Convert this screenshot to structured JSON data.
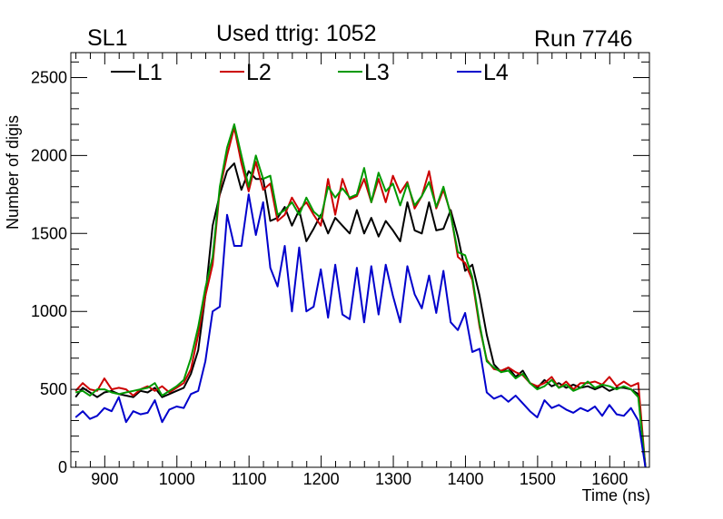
{
  "header": {
    "left": "SL1",
    "center": "Used ttrig: 1052",
    "right": "Run 7746"
  },
  "chart_data": {
    "type": "line",
    "title": "Used ttrig: 1052",
    "xlabel": "Time (ns)",
    "ylabel": "Number of digis",
    "xlim": [
      853,
      1655
    ],
    "ylim": [
      0,
      2660
    ],
    "xticks": [
      900,
      1000,
      1100,
      1200,
      1300,
      1400,
      1500,
      1600
    ],
    "yticks": [
      0,
      500,
      1000,
      1500,
      2000,
      2500
    ],
    "x": [
      859.5,
      869.5,
      879.5,
      889.5,
      899.5,
      909.5,
      919.5,
      929.5,
      939.5,
      949.5,
      959.5,
      969.5,
      979.5,
      989.5,
      999.5,
      1009.5,
      1019.5,
      1029.5,
      1039.5,
      1049.5,
      1059.5,
      1069.5,
      1079.5,
      1089.5,
      1099.5,
      1109.5,
      1119.5,
      1129.5,
      1139.5,
      1149.5,
      1159.5,
      1169.5,
      1179.5,
      1189.5,
      1199.5,
      1209.5,
      1219.5,
      1229.5,
      1239.5,
      1249.5,
      1259.5,
      1269.5,
      1279.5,
      1289.5,
      1299.5,
      1309.5,
      1319.5,
      1329.5,
      1339.5,
      1349.5,
      1359.5,
      1369.5,
      1379.5,
      1389.5,
      1399.5,
      1409.5,
      1419.5,
      1429.5,
      1439.5,
      1449.5,
      1459.5,
      1469.5,
      1479.5,
      1489.5,
      1499.5,
      1509.5,
      1519.5,
      1529.5,
      1539.5,
      1549.5,
      1559.5,
      1569.5,
      1579.5,
      1589.5,
      1599.5,
      1609.5,
      1619.5,
      1629.5,
      1639.5,
      1649.5
    ],
    "series": [
      {
        "name": "L1",
        "color": "#000000",
        "values": [
          450,
          510,
          480,
          450,
          480,
          490,
          470,
          460,
          450,
          490,
          480,
          510,
          450,
          470,
          490,
          510,
          600,
          750,
          1100,
          1550,
          1750,
          1900,
          1950,
          1780,
          1900,
          1850,
          1850,
          1580,
          1600,
          1670,
          1550,
          1650,
          1450,
          1530,
          1620,
          1500,
          1600,
          1550,
          1500,
          1650,
          1500,
          1600,
          1480,
          1580,
          1520,
          1450,
          1700,
          1520,
          1500,
          1700,
          1520,
          1530,
          1650,
          1480,
          1260,
          1300,
          1100,
          850,
          660,
          610,
          640,
          580,
          620,
          540,
          510,
          560,
          520,
          540,
          510,
          530,
          510,
          520,
          500,
          520,
          490,
          510,
          510,
          500,
          470,
          0
        ]
      },
      {
        "name": "L2",
        "color": "#cc0000",
        "values": [
          490,
          540,
          500,
          490,
          570,
          500,
          510,
          500,
          460,
          500,
          520,
          490,
          520,
          480,
          510,
          540,
          630,
          850,
          1100,
          1300,
          1780,
          2000,
          2180,
          1950,
          1770,
          1960,
          1780,
          1820,
          1580,
          1620,
          1730,
          1650,
          1700,
          1620,
          1550,
          1850,
          1620,
          1850,
          1720,
          1740,
          1850,
          1700,
          1850,
          1700,
          1870,
          1760,
          1830,
          1660,
          1740,
          1900,
          1660,
          1780,
          1630,
          1350,
          1310,
          1200,
          900,
          690,
          630,
          620,
          640,
          610,
          590,
          540,
          520,
          540,
          580,
          510,
          550,
          500,
          540,
          540,
          550,
          530,
          580,
          520,
          550,
          520,
          540,
          0
        ]
      },
      {
        "name": "L3",
        "color": "#009900",
        "values": [
          480,
          490,
          460,
          500,
          500,
          480,
          470,
          480,
          490,
          500,
          510,
          540,
          460,
          490,
          520,
          560,
          700,
          900,
          1150,
          1350,
          1800,
          2050,
          2200,
          2000,
          1800,
          2000,
          1850,
          1870,
          1620,
          1650,
          1700,
          1620,
          1730,
          1640,
          1600,
          1800,
          1730,
          1790,
          1730,
          1750,
          1920,
          1700,
          1890,
          1770,
          1820,
          1680,
          1820,
          1680,
          1740,
          1830,
          1670,
          1800,
          1620,
          1380,
          1360,
          1220,
          920,
          680,
          640,
          610,
          620,
          570,
          600,
          540,
          500,
          520,
          560,
          510,
          530,
          490,
          510,
          550,
          510,
          530,
          520,
          500,
          520,
          500,
          450,
          0
        ]
      },
      {
        "name": "L4",
        "color": "#0000cc",
        "values": [
          320,
          360,
          310,
          330,
          380,
          360,
          450,
          290,
          360,
          340,
          350,
          430,
          290,
          370,
          390,
          380,
          470,
          490,
          680,
          1000,
          1030,
          1620,
          1420,
          1420,
          1750,
          1490,
          1700,
          1280,
          1160,
          1420,
          1000,
          1410,
          1000,
          1030,
          1270,
          960,
          1300,
          980,
          950,
          1280,
          930,
          1290,
          980,
          1300,
          1100,
          930,
          1290,
          1110,
          1020,
          1230,
          990,
          1260,
          930,
          880,
          990,
          740,
          760,
          480,
          440,
          460,
          420,
          460,
          410,
          360,
          320,
          430,
          380,
          400,
          370,
          350,
          380,
          360,
          390,
          330,
          400,
          340,
          330,
          380,
          300,
          0
        ]
      }
    ]
  }
}
